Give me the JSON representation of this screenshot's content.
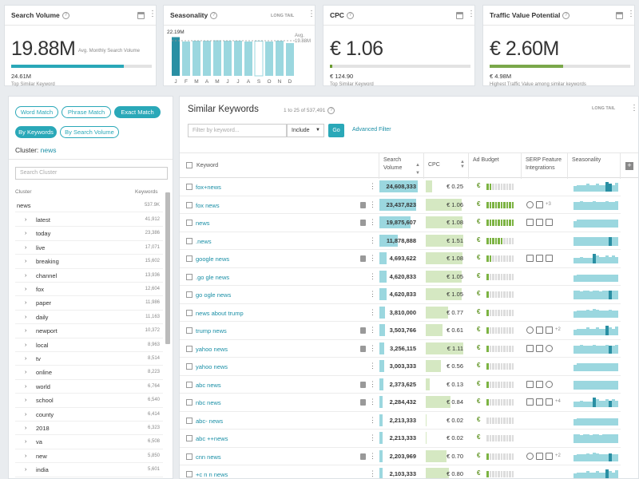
{
  "cards": [
    {
      "title": "Search Volume",
      "big": "19.88M",
      "sub": "Avg. Monthly Search Volume",
      "value": "24.61M",
      "label": "Top Similar Keyword",
      "fill": 0.8,
      "color": "#2aa8b8"
    },
    {
      "title": "Seasonality",
      "top": "22.19M",
      "avg_label": "Avg.",
      "avg_value": "19.88M",
      "long_tail": "LONG TAIL",
      "months": [
        "J",
        "F",
        "M",
        "A",
        "M",
        "J",
        "J",
        "A",
        "S",
        "O",
        "N",
        "D"
      ],
      "heights": [
        0.97,
        0.86,
        0.88,
        0.88,
        0.89,
        0.88,
        0.88,
        0.86,
        0.87,
        0.86,
        0.88,
        0.82
      ]
    },
    {
      "title": "CPC",
      "big": "€ 1.06",
      "value": "€ 124.90",
      "label": "Top Similar Keyword",
      "fill": 0.01,
      "color": "#6a9b30"
    },
    {
      "title": "Traffic Value Potential",
      "big": "€ 2.60M",
      "value": "€ 4.98M",
      "label": "Highest Traffic Value among similar keywords",
      "fill": 0.52,
      "color": "#7aa84a"
    }
  ],
  "left": {
    "match_pills": [
      "Word Match",
      "Phrase Match",
      "Exact Match"
    ],
    "by_pills": [
      "By Keywords",
      "By Search Volume"
    ],
    "cluster_prefix": "Cluster:",
    "cluster_name": "news",
    "search_placeholder": "Search Cluster",
    "col_cluster": "Cluster",
    "col_keywords": "Keywords",
    "root": {
      "name": "news",
      "count": "537.9K"
    },
    "clusters": [
      {
        "name": "latest",
        "count": "41,912"
      },
      {
        "name": "today",
        "count": "23,386"
      },
      {
        "name": "live",
        "count": "17,071"
      },
      {
        "name": "breaking",
        "count": "15,602"
      },
      {
        "name": "channel",
        "count": "13,936"
      },
      {
        "name": "fox",
        "count": "12,604"
      },
      {
        "name": "paper",
        "count": "11,986"
      },
      {
        "name": "daily",
        "count": "11,163"
      },
      {
        "name": "newport",
        "count": "10,372"
      },
      {
        "name": "local",
        "count": "8,963"
      },
      {
        "name": "tv",
        "count": "8,514"
      },
      {
        "name": "online",
        "count": "8,223"
      },
      {
        "name": "world",
        "count": "6,764"
      },
      {
        "name": "school",
        "count": "6,540"
      },
      {
        "name": "county",
        "count": "6,414"
      },
      {
        "name": "2018",
        "count": "6,323"
      },
      {
        "name": "va",
        "count": "6,508"
      },
      {
        "name": "new",
        "count": "5,850"
      },
      {
        "name": "india",
        "count": "5,601"
      }
    ]
  },
  "main": {
    "title": "Similar Keywords",
    "count": "1 to 25 of 537,491",
    "long_tail": "LONG TAIL",
    "filter_placeholder": "Filter by keyword...",
    "include": "Include",
    "go": "Go",
    "advanced": "Advanced Filter",
    "headers": {
      "keyword": "Keyword",
      "volume1": "Search",
      "volume2": "Volume",
      "cpc": "CPC",
      "budget": "Ad Budget",
      "serp1": "SERP Feature",
      "serp2": "Integrations",
      "seasonality": "Seasonality"
    },
    "rows": [
      {
        "kw": "fox+news",
        "vol": "24,608,333",
        "v": 1.0,
        "cpc": "€ 0.25",
        "c": 0.18,
        "budget": 2,
        "doc": false,
        "serp": [],
        "more": ""
      },
      {
        "kw": "fox news",
        "vol": "23,437,823",
        "v": 0.95,
        "cpc": "€ 1.06",
        "c": 0.95,
        "budget": 10,
        "doc": true,
        "serp": [
          "c",
          "s"
        ],
        "more": "+3"
      },
      {
        "kw": "news",
        "vol": "19,875,607",
        "v": 0.81,
        "cpc": "€ 1.08",
        "c": 0.97,
        "budget": 10,
        "doc": true,
        "serp": [
          "s",
          "s",
          "s"
        ],
        "more": ""
      },
      {
        "kw": ".news",
        "vol": "11,878,888",
        "v": 0.48,
        "cpc": "€ 1.51",
        "c": 1.0,
        "budget": 6,
        "doc": false,
        "serp": [],
        "more": ""
      },
      {
        "kw": "google news",
        "vol": "4,693,622",
        "v": 0.19,
        "cpc": "€ 1.08",
        "c": 0.97,
        "budget": 2,
        "doc": true,
        "serp": [
          "s",
          "s",
          "s"
        ],
        "more": ""
      },
      {
        "kw": ".go gle news",
        "vol": "4,620,833",
        "v": 0.18,
        "cpc": "€ 1.05",
        "c": 0.95,
        "budget": 1,
        "doc": false,
        "serp": [],
        "more": ""
      },
      {
        "kw": "go ogle news",
        "vol": "4,620,833",
        "v": 0.18,
        "cpc": "€ 1.05",
        "c": 0.95,
        "budget": 1,
        "doc": false,
        "serp": [],
        "more": ""
      },
      {
        "kw": "news about trump",
        "vol": "3,810,000",
        "v": 0.15,
        "cpc": "€ 0.77",
        "c": 0.6,
        "budget": 1,
        "doc": false,
        "serp": [],
        "more": ""
      },
      {
        "kw": "trump news",
        "vol": "3,503,766",
        "v": 0.14,
        "cpc": "€ 0.61",
        "c": 0.45,
        "budget": 1,
        "doc": true,
        "serp": [
          "c",
          "s",
          "s"
        ],
        "more": "+2"
      },
      {
        "kw": "yahoo news",
        "vol": "3,256,115",
        "v": 0.13,
        "cpc": "€ 1.11",
        "c": 0.99,
        "budget": 1,
        "doc": true,
        "serp": [
          "s",
          "s",
          "c"
        ],
        "more": ""
      },
      {
        "kw": "yahoo news",
        "vol": "3,003,333",
        "v": 0.12,
        "cpc": "€ 0.56",
        "c": 0.4,
        "budget": 1,
        "doc": false,
        "serp": [],
        "more": ""
      },
      {
        "kw": "abc news",
        "vol": "2,373,625",
        "v": 0.1,
        "cpc": "€ 0.13",
        "c": 0.1,
        "budget": 1,
        "doc": true,
        "serp": [
          "s",
          "s",
          "c"
        ],
        "more": ""
      },
      {
        "kw": "nbc news",
        "vol": "2,284,432",
        "v": 0.09,
        "cpc": "€ 0.84",
        "c": 0.65,
        "budget": 1,
        "doc": true,
        "serp": [
          "s",
          "s",
          "s"
        ],
        "more": "+4"
      },
      {
        "kw": "abc- news",
        "vol": "2,213,333",
        "v": 0.09,
        "cpc": "€ 0.02",
        "c": 0.02,
        "budget": 0,
        "doc": false,
        "serp": [],
        "more": ""
      },
      {
        "kw": "abc ++news",
        "vol": "2,213,333",
        "v": 0.09,
        "cpc": "€ 0.02",
        "c": 0.02,
        "budget": 0,
        "doc": false,
        "serp": [],
        "more": ""
      },
      {
        "kw": "cnn news",
        "vol": "2,203,969",
        "v": 0.09,
        "cpc": "€ 0.70",
        "c": 0.55,
        "budget": 1,
        "doc": true,
        "serp": [
          "c",
          "s",
          "s"
        ],
        "more": "+2"
      },
      {
        "kw": "+c n n news",
        "vol": "2,103,333",
        "v": 0.09,
        "cpc": "€ 0.80",
        "c": 0.62,
        "budget": 1,
        "doc": false,
        "serp": [],
        "more": ""
      }
    ]
  }
}
